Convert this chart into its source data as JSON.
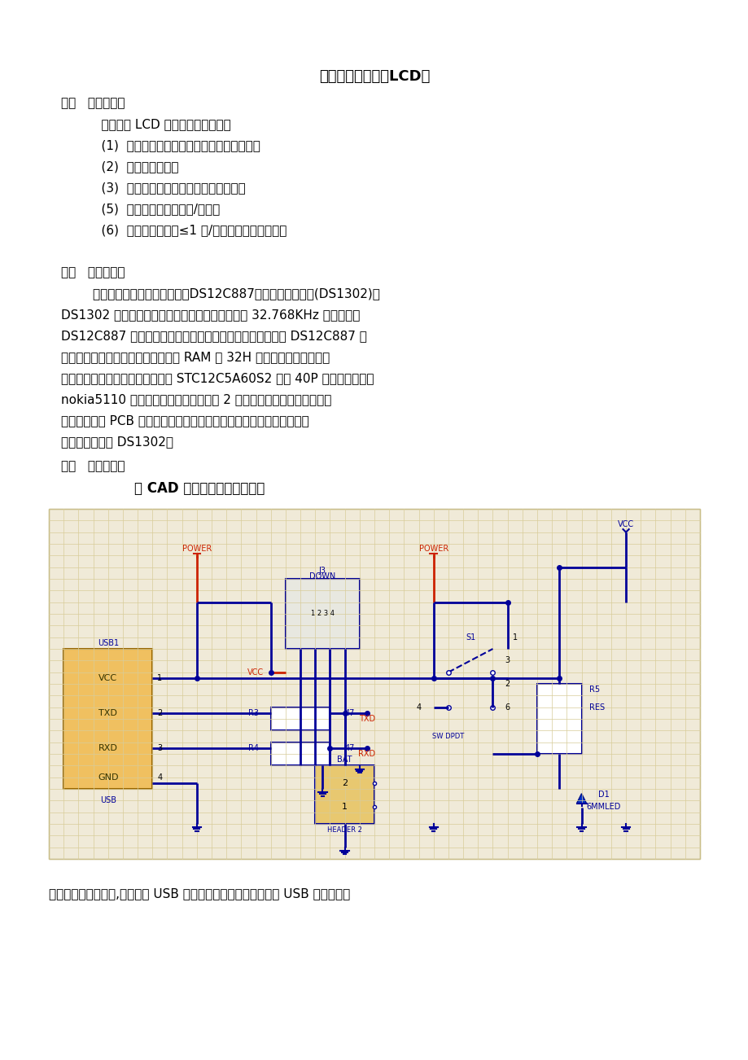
{
  "bg_color": "#ffffff",
  "title": "题目智能电子钟（LCD）",
  "section1_header": "一、   设计要求：",
  "section1_intro": "    制作一个 LCD 显示的智能电子钟：",
  "section1_items": [
    "    (1)  计时：秒、分、时、日、月、年、星期。",
    "    (2)  闰年自动判别。",
    "    (3)  时间、年、月、日、星期交替显示。",
    "    (5)  自定任意时刻自动开/关屏。",
    "    (6)  计时精度：误差≤1 秒/月（具有微调设置）。"
  ],
  "section2_header": "二、   方案论证：",
  "section2_text": [
    "        本实验可采用并行时钟芯片（DS12C887）和串行时钟芯片(DS1302)，",
    "DS1302 要用户自己安装后备电池和串口通讯，要 32.768KHz 的晶振，而",
    "DS12C887 自带后备电池，并口通讯，无需外围元件，并且 DS12C887 多",
    "了一个字节来记录世纪使用的，处在 RAM 的 32H 单元，但是其他的寄存",
    "器定义都相同。由于本实验用到了 STC12C5A60S2 直插 40P 封装的单片机、",
    "nokia5110 液晶屏、独立式按键、四路 2 输入与门并且都是直插的，而",
    "且在实验室做 PCB 只能是单层板，为了节约空间和简化电路于是就选用",
    "了串行时钟芯片 DS1302。"
  ],
  "section3_header": "三、   理论设计：",
  "section3_subtitle": "用 CAD 软件绘制的硬件原理图",
  "footer_text": "电源和程序下载端口,此部分的 USB 可提供电源和下载端口适用于 USB 下载端口，",
  "text_color": "#000000",
  "red_color": "#cc2200",
  "blue_color": "#000099",
  "dark_blue": "#000066",
  "yellow_box": "#f0c060",
  "yellow_box2": "#e8c870",
  "grid_bg": "#f0ead8",
  "grid_color": "#d8cc9a",
  "circuit_border": "#aaa060"
}
